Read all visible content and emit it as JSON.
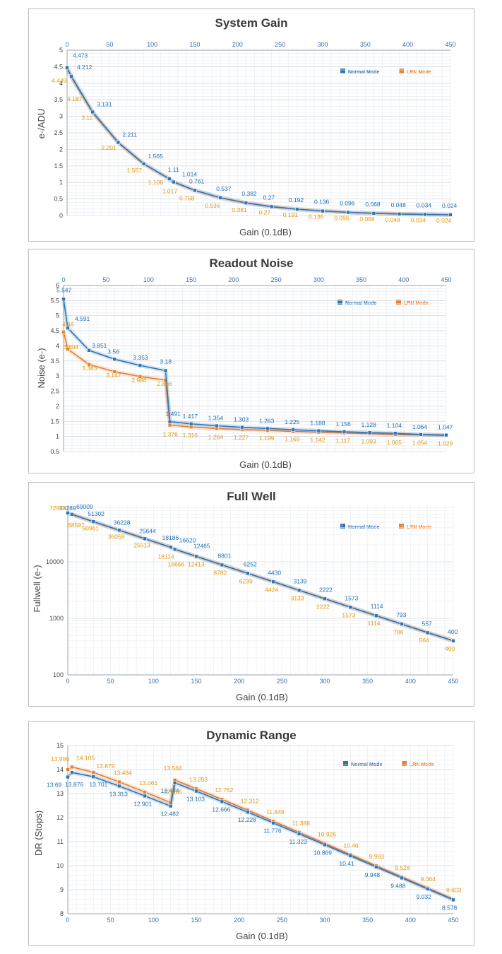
{
  "colors": {
    "normal": "#2e75b6",
    "lrn": "#ed7d31",
    "normal_text": "#1f6fb5",
    "lrn_text": "#e39a0c",
    "grid": "#dfe5ee"
  },
  "chart_data": [
    {
      "id": "gain",
      "type": "line",
      "title": "System Gain",
      "xlabel": "Gain (0.1dB)",
      "ylabel": "e-/ADU",
      "xlim": [
        0,
        450
      ],
      "ylim": [
        0,
        5
      ],
      "xticks": [
        0,
        50,
        100,
        150,
        200,
        250,
        300,
        350,
        400,
        450
      ],
      "yticks": [
        0,
        0.5,
        1,
        1.5,
        2,
        2.5,
        3,
        3.5,
        4,
        4.5,
        5
      ],
      "ytick_labels": [
        "0",
        "0.5",
        "1",
        "1.5",
        "2",
        "2.5",
        "3",
        "3.5",
        "4",
        "4.5",
        "5"
      ],
      "x_axis_position": "top",
      "legend": [
        "Normal Mode",
        "LRN Mode"
      ],
      "series": [
        {
          "name": "Normal Mode",
          "x": [
            0,
            5,
            30,
            60,
            90,
            120,
            125,
            150,
            180,
            210,
            240,
            270,
            300,
            330,
            360,
            390,
            420,
            450
          ],
          "values": [
            4.473,
            4.212,
            3.131,
            2.211,
            1.565,
            1.11,
            1.014,
            0.761,
            0.537,
            0.382,
            0.27,
            0.192,
            0.136,
            0.096,
            0.068,
            0.048,
            0.034,
            0.024
          ],
          "labels": [
            "4.473",
            "4.212",
            "3.131",
            "2.211",
            "1.565",
            "1.11",
            "1.014",
            "0.761",
            "0.537",
            "0.382",
            "0.27",
            "0.192",
            "0.136",
            "0.096",
            "0.068",
            "0.048",
            "0.034",
            "0.024"
          ]
        },
        {
          "name": "LRN Mode",
          "x": [
            0,
            5,
            30,
            60,
            90,
            120,
            125,
            150,
            180,
            210,
            240,
            270,
            300,
            330,
            360,
            390,
            420,
            450
          ],
          "values": [
            4.449,
            4.187,
            3.11,
            2.201,
            1.557,
            1.106,
            1.017,
            0.758,
            0.536,
            0.381,
            0.27,
            0.191,
            0.136,
            0.096,
            0.068,
            0.048,
            0.034,
            0.024
          ],
          "labels": [
            "4.449",
            "4.187",
            "3.11",
            "2.201",
            "1.557",
            "1.106",
            "1.017",
            "0.758",
            "0.536",
            "0.381",
            "0.27",
            "0.191",
            "0.136",
            "0.096",
            "0.068",
            "0.048",
            "0.034",
            "0.024"
          ]
        }
      ]
    },
    {
      "id": "noise",
      "type": "line",
      "title": "Readout Noise",
      "xlabel": "Gain (0.1dB)",
      "ylabel": "Noise (e-)",
      "xlim": [
        0,
        450
      ],
      "ylim": [
        0.5,
        6
      ],
      "xticks": [
        0,
        50,
        100,
        150,
        200,
        250,
        300,
        350,
        400,
        450
      ],
      "yticks": [
        0.5,
        1,
        1.5,
        2,
        2.5,
        3,
        3.5,
        4,
        4.5,
        5,
        5.5,
        6
      ],
      "ytick_labels": [
        "0.5",
        "1",
        "1.5",
        "2",
        "2.5",
        "3",
        "3.5",
        "4",
        "4.5",
        "5",
        "5.5",
        "6"
      ],
      "x_axis_position": "top",
      "legend": [
        "Normal Mode",
        "LRN Mode"
      ],
      "series": [
        {
          "name": "Normal Mode",
          "x": [
            0,
            5,
            30,
            60,
            90,
            120,
            125,
            150,
            180,
            210,
            240,
            270,
            300,
            330,
            360,
            390,
            420,
            450
          ],
          "values": [
            5.547,
            4.591,
            3.851,
            3.56,
            3.353,
            3.18,
            1.491,
            1.417,
            1.354,
            1.303,
            1.263,
            1.225,
            1.188,
            1.156,
            1.128,
            1.104,
            1.064,
            1.047
          ],
          "labels": [
            "5.547",
            "4.591",
            "3.851",
            "3.56",
            "3.353",
            "3.18",
            "1.491",
            "1.417",
            "1.354",
            "1.303",
            "1.263",
            "1.225",
            "1.188",
            "1.156",
            "1.128",
            "1.104",
            "1.064",
            "1.047"
          ]
        },
        {
          "name": "LRN Mode",
          "x": [
            0,
            5,
            30,
            60,
            90,
            120,
            125,
            150,
            180,
            210,
            240,
            270,
            300,
            330,
            360,
            390,
            420,
            450
          ],
          "values": [
            4.46,
            3.894,
            3.383,
            3.147,
            2.986,
            2.866,
            1.376,
            1.316,
            1.264,
            1.227,
            1.199,
            1.169,
            1.142,
            1.117,
            1.093,
            1.065,
            1.054,
            1.029
          ],
          "labels": [
            "4.46",
            "3.894",
            "3.383",
            "3.147",
            "2.986",
            "2.866",
            "1.376",
            "1.316",
            "1.264",
            "1.227",
            "1.199",
            "1.169",
            "1.142",
            "1.117",
            "1.093",
            "1.065",
            "1.054",
            "1.029"
          ]
        }
      ]
    },
    {
      "id": "fullwell",
      "type": "line",
      "title": "Full Well",
      "xlabel": "Gain (0.1dB)",
      "ylabel": "Fullwell (e-)",
      "yscale": "log",
      "xlim": [
        0,
        450
      ],
      "ylim": [
        100,
        100000
      ],
      "xticks": [
        0,
        50,
        100,
        150,
        200,
        250,
        300,
        350,
        400,
        450
      ],
      "yticks": [
        100,
        1000,
        10000
      ],
      "ytick_labels": [
        "100",
        "1000",
        "10000"
      ],
      "x_axis_position": "bottom",
      "legend": [
        "Normal Mode",
        "LRN Mode"
      ],
      "series": [
        {
          "name": "Normal Mode",
          "x": [
            0,
            5,
            30,
            60,
            90,
            120,
            125,
            150,
            180,
            210,
            240,
            270,
            300,
            330,
            360,
            390,
            420,
            450
          ],
          "values": [
            73289,
            69009,
            51302,
            36228,
            25644,
            18186,
            16620,
            12465,
            8801,
            6252,
            4430,
            3139,
            2222,
            1573,
            1114,
            793,
            557,
            400
          ],
          "labels": [
            "73289",
            "69009",
            "51302",
            "36228",
            "25644",
            "18186",
            "16620",
            "12465",
            "8801",
            "6252",
            "4430",
            "3139",
            "2222",
            "1573",
            "1114",
            "793",
            "557",
            "400"
          ]
        },
        {
          "name": "LRN Mode",
          "x": [
            0,
            5,
            30,
            60,
            90,
            120,
            125,
            150,
            180,
            210,
            240,
            270,
            300,
            330,
            360,
            390,
            420,
            450
          ],
          "values": [
            72889,
            68597,
            50961,
            36058,
            25513,
            18114,
            16666,
            12413,
            8782,
            6239,
            4424,
            3133,
            2222,
            1573,
            1114,
            786,
            564,
            400
          ],
          "labels": [
            "72889",
            "68597",
            "50961",
            "36058",
            "25513",
            "18114",
            "16666",
            "12413",
            "8782",
            "6239",
            "4424",
            "3133",
            "2222",
            "1573",
            "1114",
            "786",
            "564",
            "400"
          ]
        }
      ]
    },
    {
      "id": "dr",
      "type": "line",
      "title": "Dynamic Range",
      "xlabel": "Gain (0.1dB)",
      "ylabel": "DR (Stops)",
      "xlim": [
        0,
        450
      ],
      "ylim": [
        8,
        15
      ],
      "xticks": [
        0,
        50,
        100,
        150,
        200,
        250,
        300,
        350,
        400,
        450
      ],
      "yticks": [
        8,
        9,
        10,
        11,
        12,
        13,
        14,
        15
      ],
      "ytick_labels": [
        "8",
        "9",
        "10",
        "11",
        "12",
        "13",
        "14",
        "15"
      ],
      "x_axis_position": "bottom",
      "legend": [
        "Normal Mode",
        "LRN Mode"
      ],
      "series": [
        {
          "name": "Normal Mode",
          "x": [
            0,
            5,
            30,
            60,
            90,
            120,
            125,
            150,
            180,
            210,
            240,
            270,
            300,
            330,
            360,
            390,
            420,
            450
          ],
          "values": [
            13.69,
            13.876,
            13.701,
            13.313,
            12.901,
            12.482,
            13.444,
            13.103,
            12.666,
            12.228,
            11.776,
            11.323,
            10.869,
            10.41,
            9.948,
            9.488,
            9.032,
            8.578
          ],
          "labels": [
            "13.69",
            "13.876",
            "13.701",
            "13.313",
            "12.901",
            "12.482",
            "13.444",
            "13.103",
            "12.666",
            "12.228",
            "11.776",
            "11.323",
            "10.869",
            "10.41",
            "9.948",
            "9.488",
            "9.032",
            "8.578"
          ]
        },
        {
          "name": "LRN Mode",
          "x": [
            0,
            5,
            30,
            60,
            90,
            120,
            125,
            150,
            180,
            210,
            240,
            270,
            300,
            330,
            360,
            390,
            420,
            450
          ],
          "values": [
            13.996,
            14.105,
            13.879,
            13.484,
            13.061,
            12.626,
            13.564,
            13.203,
            12.762,
            12.312,
            11.849,
            11.388,
            10.926,
            10.46,
            9.993,
            9.528,
            9.064,
            8.603
          ],
          "labels": [
            "13.996",
            "14.105",
            "13.879",
            "13.484",
            "13.061",
            "12.626",
            "13.564",
            "13.203",
            "12.762",
            "12.312",
            "11.849",
            "11.388",
            "10.926",
            "10.46",
            "9.993",
            "9.528",
            "9.064",
            "8.603"
          ]
        }
      ]
    }
  ]
}
